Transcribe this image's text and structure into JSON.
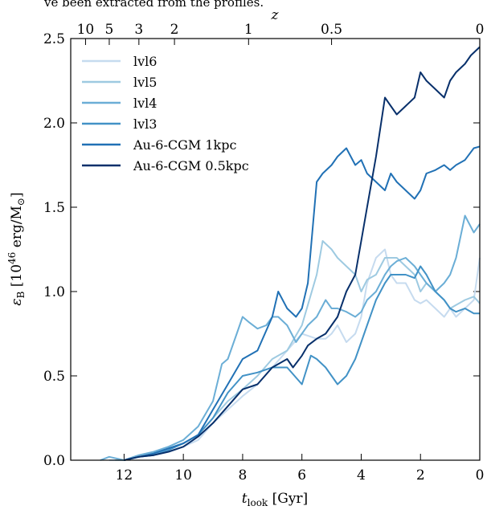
{
  "header_text": "ve been extracted from the profiles.",
  "chart_data": {
    "type": "line",
    "xlabel_main": "t",
    "xlabel_sub": "look",
    "xlabel_unit": " [Gyr]",
    "ylabel": "ε_B [10^46 erg/M☉]",
    "ylabel_main": "ε",
    "ylabel_sub": "B",
    "ylabel_unit_pre": " [10",
    "ylabel_unit_exp": "46",
    "ylabel_unit_post": " erg/M",
    "ylabel_unit_sun": "⊙",
    "ylabel_unit_close": "]",
    "top_axis_label": "z",
    "xlim": [
      13.8,
      0
    ],
    "ylim": [
      0,
      2.5
    ],
    "x_ticks": [
      12,
      10,
      8,
      6,
      4,
      2,
      0
    ],
    "x_tick_labels": [
      "12",
      "10",
      "8",
      "6",
      "4",
      "2",
      "0"
    ],
    "y_ticks": [
      0,
      0.5,
      1.0,
      1.5,
      2.0,
      2.5
    ],
    "y_tick_labels": [
      "0.0",
      "0.5",
      "1.0",
      "1.5",
      "2.0",
      "2.5"
    ],
    "top_ticks": [
      {
        "t": 13.3,
        "label": "10"
      },
      {
        "t": 12.5,
        "label": "5"
      },
      {
        "t": 11.5,
        "label": "3"
      },
      {
        "t": 10.3,
        "label": "2"
      },
      {
        "t": 7.8,
        "label": "1"
      },
      {
        "t": 5.0,
        "label": "0.5"
      },
      {
        "t": 0,
        "label": "0"
      }
    ],
    "legend_position": "top-left",
    "grid": false,
    "series": [
      {
        "name": "lvl6",
        "color": "#c6dbef",
        "x": [
          12.5,
          12,
          11.5,
          11,
          10.5,
          10,
          9.5,
          9,
          8.5,
          8,
          7.5,
          7,
          6.5,
          6,
          5.5,
          5.2,
          5,
          4.8,
          4.5,
          4.2,
          4,
          3.8,
          3.5,
          3.2,
          3,
          2.8,
          2.5,
          2.2,
          2,
          1.8,
          1.5,
          1.2,
          1,
          0.8,
          0.5,
          0.2,
          0
        ],
        "y": [
          0,
          0,
          0.02,
          0.03,
          0.05,
          0.08,
          0.12,
          0.22,
          0.3,
          0.38,
          0.45,
          0.55,
          0.65,
          0.75,
          0.72,
          0.72,
          0.75,
          0.8,
          0.7,
          0.75,
          0.85,
          1.05,
          1.2,
          1.25,
          1.1,
          1.05,
          1.05,
          0.95,
          0.93,
          0.95,
          0.9,
          0.85,
          0.9,
          0.85,
          0.9,
          0.95,
          1.2
        ]
      },
      {
        "name": "lvl5",
        "color": "#9ecae1",
        "x": [
          12.3,
          12,
          11.5,
          11,
          10.5,
          10,
          9.5,
          9,
          8.5,
          8,
          7.5,
          7,
          6.5,
          6,
          5.5,
          5.3,
          5,
          4.8,
          4.5,
          4.2,
          4,
          3.8,
          3.5,
          3.2,
          3,
          2.8,
          2.5,
          2.2,
          2,
          1.8,
          1.5,
          1.2,
          1,
          0.8,
          0.5,
          0.2,
          0
        ],
        "y": [
          0,
          0,
          0.02,
          0.04,
          0.07,
          0.1,
          0.15,
          0.25,
          0.35,
          0.42,
          0.5,
          0.6,
          0.65,
          0.8,
          1.1,
          1.3,
          1.25,
          1.2,
          1.15,
          1.1,
          1.0,
          1.07,
          1.1,
          1.2,
          1.2,
          1.2,
          1.15,
          1.1,
          1.0,
          1.05,
          1.0,
          0.95,
          0.9,
          0.92,
          0.95,
          0.97,
          0.93
        ]
      },
      {
        "name": "lvl4",
        "color": "#6baed6",
        "x": [
          12.8,
          12.5,
          12,
          11.5,
          11,
          10.5,
          10,
          9.5,
          9,
          8.7,
          8.5,
          8.2,
          8,
          7.8,
          7.5,
          7.2,
          7,
          6.8,
          6.5,
          6.2,
          6,
          5.8,
          5.5,
          5.2,
          5,
          4.8,
          4.5,
          4.2,
          4,
          3.8,
          3.5,
          3.2,
          3,
          2.8,
          2.5,
          2.2,
          2,
          1.8,
          1.5,
          1.2,
          1,
          0.8,
          0.5,
          0.2,
          0
        ],
        "y": [
          0,
          0.02,
          0,
          0.03,
          0.05,
          0.08,
          0.12,
          0.2,
          0.35,
          0.57,
          0.6,
          0.75,
          0.85,
          0.82,
          0.78,
          0.8,
          0.85,
          0.85,
          0.8,
          0.7,
          0.75,
          0.8,
          0.85,
          0.95,
          0.9,
          0.9,
          0.88,
          0.85,
          0.88,
          0.95,
          1.0,
          1.1,
          1.15,
          1.18,
          1.2,
          1.15,
          1.1,
          1.05,
          1.0,
          1.05,
          1.1,
          1.2,
          1.45,
          1.35,
          1.4
        ]
      },
      {
        "name": "lvl3",
        "color": "#4292c6",
        "x": [
          12,
          11.5,
          11,
          10.5,
          10,
          9.5,
          9,
          8.5,
          8,
          7.5,
          7,
          6.5,
          6,
          5.7,
          5.5,
          5.2,
          5,
          4.8,
          4.5,
          4.2,
          4,
          3.8,
          3.5,
          3.2,
          3,
          2.8,
          2.5,
          2.2,
          2,
          1.8,
          1.5,
          1.2,
          1,
          0.8,
          0.5,
          0.2,
          0
        ],
        "y": [
          0,
          0.02,
          0.03,
          0.06,
          0.1,
          0.15,
          0.25,
          0.4,
          0.5,
          0.52,
          0.55,
          0.55,
          0.45,
          0.62,
          0.6,
          0.55,
          0.5,
          0.45,
          0.5,
          0.6,
          0.7,
          0.8,
          0.95,
          1.05,
          1.1,
          1.1,
          1.1,
          1.08,
          1.15,
          1.1,
          1.0,
          0.95,
          0.9,
          0.88,
          0.9,
          0.87,
          0.87
        ]
      },
      {
        "name": "Au-6-CGM 1kpc",
        "color": "#2171b5",
        "x": [
          12,
          11.5,
          11,
          10.5,
          10,
          9.5,
          9,
          8.5,
          8,
          7.5,
          7,
          6.8,
          6.5,
          6.2,
          6,
          5.8,
          5.5,
          5.3,
          5,
          4.8,
          4.5,
          4.2,
          4,
          3.8,
          3.5,
          3.2,
          3,
          2.8,
          2.5,
          2.2,
          2,
          1.8,
          1.5,
          1.2,
          1,
          0.8,
          0.5,
          0.2,
          0
        ],
        "y": [
          0,
          0.02,
          0.04,
          0.07,
          0.1,
          0.15,
          0.3,
          0.45,
          0.6,
          0.65,
          0.85,
          1.0,
          0.9,
          0.85,
          0.9,
          1.05,
          1.65,
          1.7,
          1.75,
          1.8,
          1.85,
          1.75,
          1.78,
          1.7,
          1.65,
          1.6,
          1.7,
          1.65,
          1.6,
          1.55,
          1.6,
          1.7,
          1.72,
          1.75,
          1.72,
          1.75,
          1.78,
          1.85,
          1.86
        ]
      },
      {
        "name": "Au-6-CGM 0.5kpc",
        "color": "#08306b",
        "x": [
          12,
          11.5,
          11,
          10.5,
          10,
          9.5,
          9,
          8.5,
          8,
          7.5,
          7,
          6.5,
          6.3,
          6,
          5.8,
          5.5,
          5.2,
          5,
          4.8,
          4.5,
          4.2,
          4,
          3.8,
          3.5,
          3.2,
          3,
          2.8,
          2.5,
          2.2,
          2,
          1.8,
          1.5,
          1.2,
          1,
          0.8,
          0.5,
          0.3,
          0
        ],
        "y": [
          0,
          0.02,
          0.03,
          0.05,
          0.08,
          0.14,
          0.22,
          0.32,
          0.42,
          0.45,
          0.55,
          0.6,
          0.55,
          0.62,
          0.68,
          0.72,
          0.75,
          0.8,
          0.85,
          1.0,
          1.1,
          1.3,
          1.5,
          1.8,
          2.15,
          2.1,
          2.05,
          2.1,
          2.15,
          2.3,
          2.25,
          2.2,
          2.15,
          2.25,
          2.3,
          2.35,
          2.4,
          2.45
        ]
      }
    ]
  }
}
